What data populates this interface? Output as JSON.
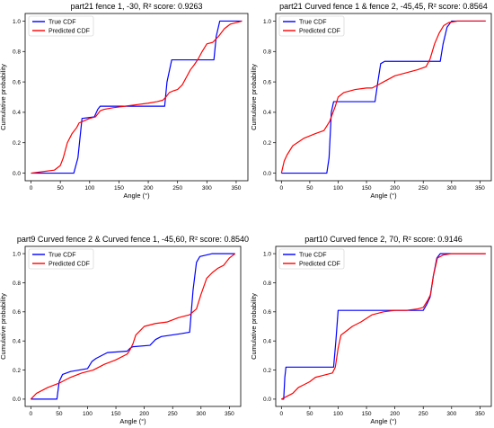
{
  "chart_data": [
    {
      "type": "line",
      "title": "part21 fence 1, -30, R² score: 0.9263",
      "xlabel": "Angle (°)",
      "ylabel": "Cumulative probability",
      "xlim": [
        -10,
        370
      ],
      "ylim": [
        -0.05,
        1.05
      ],
      "xticks": [
        0,
        50,
        100,
        150,
        200,
        250,
        300,
        350
      ],
      "yticks": [
        0.0,
        0.2,
        0.4,
        0.6,
        0.8,
        1.0
      ],
      "legend": "top-left",
      "series": [
        {
          "name": "True CDF",
          "color": "#0000ff",
          "x": [
            0,
            73,
            80,
            87,
            108,
            114,
            118,
            228,
            232,
            240,
            312,
            316,
            322,
            360
          ],
          "y": [
            0,
            0,
            0.1,
            0.36,
            0.37,
            0.42,
            0.44,
            0.44,
            0.6,
            0.745,
            0.745,
            0.9,
            1.0,
            1.0
          ]
        },
        {
          "name": "Predicted CDF",
          "color": "#ff0000",
          "x": [
            0,
            20,
            40,
            50,
            55,
            62,
            70,
            78,
            82,
            88,
            100,
            110,
            118,
            125,
            140,
            160,
            180,
            200,
            215,
            225,
            230,
            236,
            242,
            250,
            258,
            265,
            272,
            278,
            285,
            292,
            300,
            310,
            320,
            330,
            340,
            350,
            360
          ],
          "y": [
            0,
            0.01,
            0.02,
            0.05,
            0.1,
            0.2,
            0.26,
            0.3,
            0.33,
            0.34,
            0.36,
            0.37,
            0.41,
            0.42,
            0.43,
            0.44,
            0.45,
            0.46,
            0.47,
            0.48,
            0.5,
            0.53,
            0.54,
            0.55,
            0.58,
            0.63,
            0.68,
            0.71,
            0.75,
            0.8,
            0.85,
            0.86,
            0.9,
            0.95,
            0.98,
            0.99,
            1.0
          ]
        }
      ]
    },
    {
      "type": "line",
      "title": "part21 Curved fence 1 & fence 2, -45,45, R² score: 0.8564",
      "xlabel": "Angle (°)",
      "ylabel": "Cumulative probability",
      "xlim": [
        -10,
        370
      ],
      "ylim": [
        -0.05,
        1.05
      ],
      "xticks": [
        0,
        50,
        100,
        150,
        200,
        250,
        300,
        350
      ],
      "yticks": [
        0.0,
        0.2,
        0.4,
        0.6,
        0.8,
        1.0
      ],
      "legend": "top-left",
      "series": [
        {
          "name": "True CDF",
          "color": "#0000ff",
          "x": [
            0,
            80,
            84,
            88,
            92,
            165,
            170,
            175,
            182,
            280,
            285,
            292,
            300,
            360
          ],
          "y": [
            0,
            0,
            0.1,
            0.4,
            0.47,
            0.47,
            0.6,
            0.72,
            0.735,
            0.735,
            0.85,
            0.96,
            1.0,
            1.0
          ]
        },
        {
          "name": "Predicted CDF",
          "color": "#ff0000",
          "x": [
            0,
            5,
            10,
            20,
            40,
            60,
            75,
            85,
            95,
            100,
            110,
            130,
            150,
            160,
            170,
            180,
            190,
            200,
            220,
            240,
            255,
            262,
            270,
            278,
            286,
            295,
            310,
            330,
            350,
            360
          ],
          "y": [
            0,
            0.08,
            0.12,
            0.18,
            0.23,
            0.26,
            0.28,
            0.34,
            0.44,
            0.5,
            0.53,
            0.55,
            0.56,
            0.56,
            0.58,
            0.6,
            0.62,
            0.64,
            0.66,
            0.68,
            0.7,
            0.75,
            0.85,
            0.92,
            0.97,
            0.99,
            1.0,
            1.0,
            1.0,
            1.0
          ]
        }
      ]
    },
    {
      "type": "line",
      "title": "part9 Curved fence 2 & Curved fence 1, -45,60, R² score: 0.8540",
      "xlabel": "Angle (°)",
      "ylabel": "Cumulative probability",
      "xlim": [
        -10,
        370
      ],
      "ylim": [
        -0.05,
        1.05
      ],
      "xticks": [
        0,
        50,
        100,
        150,
        200,
        250,
        300,
        350
      ],
      "yticks": [
        0.0,
        0.2,
        0.4,
        0.6,
        0.8,
        1.0
      ],
      "legend": "top-left",
      "series": [
        {
          "name": "True CDF",
          "color": "#0000ff",
          "x": [
            0,
            46,
            50,
            56,
            70,
            100,
            108,
            115,
            135,
            170,
            175,
            180,
            210,
            220,
            230,
            265,
            280,
            286,
            292,
            298,
            320,
            360
          ],
          "y": [
            0,
            0,
            0.12,
            0.17,
            0.19,
            0.21,
            0.26,
            0.28,
            0.32,
            0.33,
            0.35,
            0.36,
            0.37,
            0.41,
            0.43,
            0.45,
            0.46,
            0.75,
            0.94,
            0.98,
            1.0,
            1.0
          ]
        },
        {
          "name": "Predicted CDF",
          "color": "#ff0000",
          "x": [
            0,
            10,
            30,
            50,
            70,
            90,
            110,
            130,
            150,
            170,
            175,
            180,
            185,
            200,
            220,
            240,
            260,
            280,
            292,
            300,
            310,
            320,
            330,
            340,
            350,
            360
          ],
          "y": [
            0,
            0.04,
            0.08,
            0.11,
            0.15,
            0.18,
            0.2,
            0.24,
            0.27,
            0.31,
            0.34,
            0.38,
            0.44,
            0.5,
            0.52,
            0.53,
            0.56,
            0.58,
            0.62,
            0.72,
            0.83,
            0.87,
            0.9,
            0.92,
            0.97,
            1.0
          ]
        }
      ]
    },
    {
      "type": "line",
      "title": "part10 Curved fence 2, 70, R² score: 0.9146",
      "xlabel": "Angle (°)",
      "ylabel": "Cumulative probability",
      "xlim": [
        -10,
        370
      ],
      "ylim": [
        -0.05,
        1.05
      ],
      "xticks": [
        0,
        50,
        100,
        150,
        200,
        250,
        300,
        350
      ],
      "yticks": [
        0.0,
        0.2,
        0.4,
        0.6,
        0.8,
        1.0
      ],
      "legend": "top-left",
      "series": [
        {
          "name": "True CDF",
          "color": "#0000ff",
          "x": [
            0,
            4,
            6,
            8,
            92,
            96,
            100,
            250,
            256,
            262,
            268,
            274,
            280,
            360
          ],
          "y": [
            0,
            0,
            0.15,
            0.22,
            0.22,
            0.4,
            0.61,
            0.61,
            0.65,
            0.7,
            0.85,
            0.97,
            1.0,
            1.0
          ]
        },
        {
          "name": "Predicted CDF",
          "color": "#ff0000",
          "x": [
            0,
            10,
            20,
            30,
            40,
            50,
            60,
            70,
            80,
            90,
            95,
            100,
            105,
            115,
            125,
            140,
            160,
            180,
            200,
            220,
            240,
            250,
            258,
            263,
            268,
            275,
            285,
            300,
            320,
            340,
            360
          ],
          "y": [
            0,
            0.02,
            0.04,
            0.08,
            0.1,
            0.12,
            0.15,
            0.16,
            0.17,
            0.18,
            0.22,
            0.35,
            0.44,
            0.47,
            0.5,
            0.53,
            0.58,
            0.6,
            0.61,
            0.61,
            0.62,
            0.63,
            0.68,
            0.72,
            0.85,
            0.97,
            0.99,
            1.0,
            1.0,
            1.0,
            1.0
          ]
        }
      ]
    }
  ]
}
